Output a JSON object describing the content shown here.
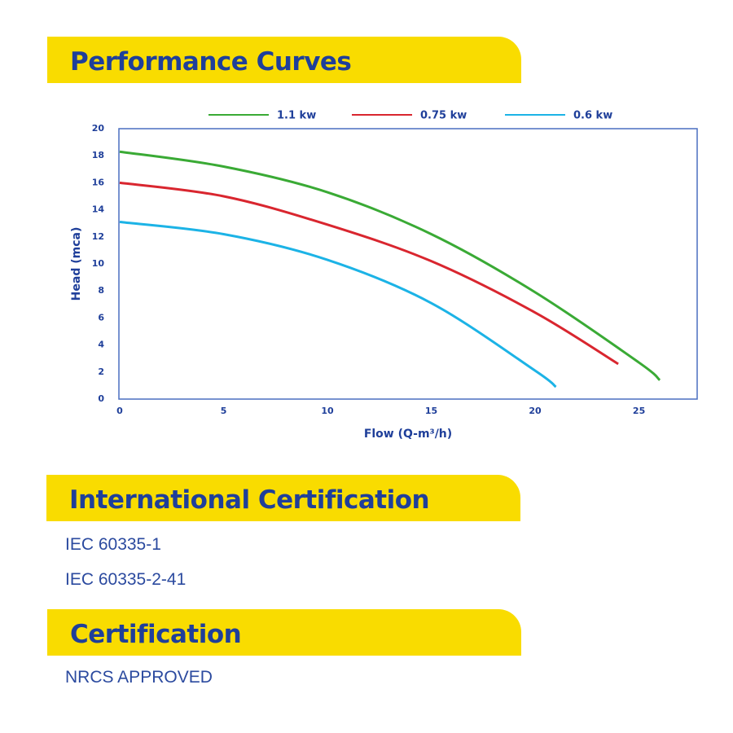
{
  "sections": [
    {
      "title": "Performance Curves"
    },
    {
      "title": "International Certification",
      "items": [
        "IEC 60335-1",
        "IEC 60335-2-41"
      ]
    },
    {
      "title": "Certification",
      "items": [
        "NRCS APPROVED"
      ]
    }
  ],
  "chart_data": {
    "type": "line",
    "xlabel": "Flow (Q-m³/h)",
    "ylabel": "Head (mca)",
    "xlim": [
      0,
      27.8
    ],
    "ylim": [
      0,
      20
    ],
    "xticks": [
      0,
      5,
      10,
      15,
      20,
      25
    ],
    "yticks": [
      0,
      2,
      4,
      6,
      8,
      10,
      12,
      14,
      16,
      18,
      20
    ],
    "series": [
      {
        "name": "1.1 kw",
        "color": "#3aaa35",
        "x": [
          0,
          5,
          10,
          15,
          20,
          25,
          26
        ],
        "values": [
          18.3,
          17.2,
          15.3,
          12.2,
          7.9,
          2.7,
          1.4
        ]
      },
      {
        "name": "0.75 kw",
        "color": "#d9262f",
        "x": [
          0,
          5,
          10,
          15,
          20,
          24
        ],
        "values": [
          16.0,
          15.0,
          12.9,
          10.2,
          6.4,
          2.6
        ]
      },
      {
        "name": "0.6 kw",
        "color": "#1cb3e6",
        "x": [
          0,
          5,
          10,
          15,
          20,
          21
        ],
        "values": [
          13.1,
          12.2,
          10.3,
          7.1,
          2.1,
          0.9
        ]
      }
    ]
  }
}
